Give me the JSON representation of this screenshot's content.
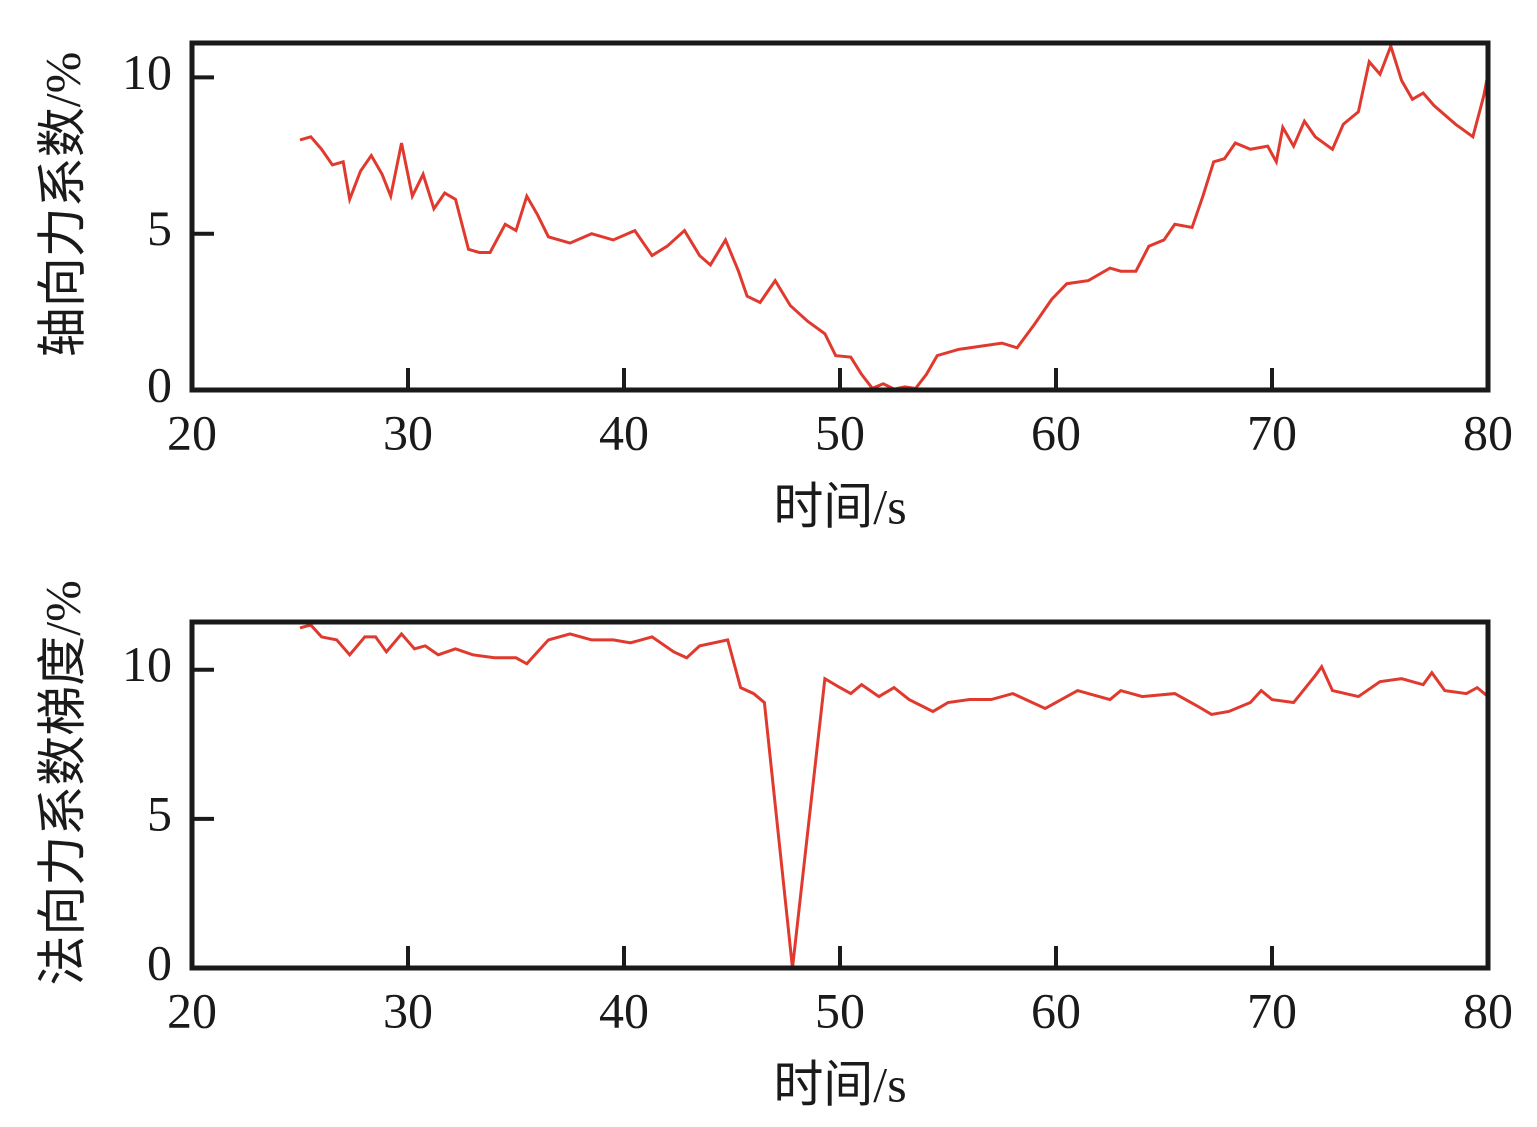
{
  "chart_data": [
    {
      "type": "line",
      "xlabel": "时间/s",
      "ylabel": "轴向力系数/%",
      "xlim": [
        20,
        80
      ],
      "xticks": [
        20,
        30,
        40,
        50,
        60,
        70,
        80
      ],
      "ylim": [
        0,
        11.1
      ],
      "yticks": [
        0,
        5,
        10
      ],
      "series": [
        {
          "color": "#e03a2f",
          "x": [
            25,
            25.5,
            26,
            26.5,
            27,
            27.3,
            27.8,
            28.3,
            28.8,
            29.2,
            29.7,
            30.2,
            30.7,
            31.2,
            31.7,
            32.2,
            32.8,
            33.3,
            33.8,
            34.5,
            35,
            35.5,
            36,
            36.5,
            37.5,
            38.5,
            39.5,
            40.5,
            41.3,
            42,
            42.8,
            43.5,
            44,
            44.7,
            45.3,
            45.7,
            46.3,
            47,
            47.7,
            48.5,
            49.3,
            49.8,
            50.5,
            51,
            51.5,
            52,
            52.5,
            53,
            53.5,
            54,
            54.5,
            55.5,
            56.5,
            57.5,
            58.2,
            59,
            59.8,
            60.5,
            61.5,
            62.5,
            63,
            63.7,
            64.3,
            65,
            65.5,
            66.3,
            66.8,
            67.3,
            67.8,
            68.3,
            69,
            69.8,
            70.2,
            70.5,
            71,
            71.5,
            72,
            72.8,
            73.3,
            74,
            74.5,
            75,
            75.5,
            76,
            76.5,
            77,
            77.5,
            78.5,
            79.3,
            79.8,
            80
          ],
          "values": [
            8.0,
            8.1,
            7.7,
            7.2,
            7.3,
            6.1,
            7.0,
            7.5,
            6.9,
            6.2,
            7.9,
            6.2,
            6.9,
            5.8,
            6.3,
            6.1,
            4.5,
            4.4,
            4.4,
            5.3,
            5.1,
            6.2,
            5.6,
            4.9,
            4.7,
            5.0,
            4.8,
            5.1,
            4.3,
            4.6,
            5.1,
            4.3,
            4.0,
            4.8,
            3.8,
            3.0,
            2.8,
            3.5,
            2.7,
            2.2,
            1.8,
            1.1,
            1.05,
            0.5,
            0.05,
            0.2,
            0.03,
            0.1,
            0.05,
            0.5,
            1.1,
            1.3,
            1.4,
            1.5,
            1.35,
            2.1,
            2.9,
            3.4,
            3.5,
            3.9,
            3.8,
            3.8,
            4.6,
            4.8,
            5.3,
            5.2,
            6.2,
            7.3,
            7.4,
            7.9,
            7.7,
            7.8,
            7.3,
            8.4,
            7.8,
            8.6,
            8.1,
            7.7,
            8.5,
            8.9,
            10.5,
            10.1,
            11.0,
            9.9,
            9.3,
            9.5,
            9.1,
            8.5,
            8.1,
            9.4,
            10.1
          ]
        }
      ]
    },
    {
      "type": "line",
      "xlabel": "时间/s",
      "ylabel": "法向力系数梯度/%",
      "xlim": [
        20,
        80
      ],
      "xticks": [
        20,
        30,
        40,
        50,
        60,
        70,
        80
      ],
      "ylim": [
        0,
        11.6
      ],
      "yticks": [
        0,
        5,
        10
      ],
      "series": [
        {
          "color": "#e03a2f",
          "x": [
            25,
            25.5,
            26,
            26.7,
            27.3,
            28,
            28.5,
            29,
            29.7,
            30.3,
            30.8,
            31.4,
            32.2,
            33,
            34,
            35,
            35.5,
            36.5,
            37.5,
            38.5,
            39.5,
            40.3,
            41.3,
            42.3,
            42.9,
            43.5,
            44.8,
            45.4,
            46,
            46.5,
            47.8,
            49.3,
            50,
            50.5,
            51,
            51.8,
            52.5,
            53.2,
            54.3,
            55,
            56,
            57,
            58,
            59.5,
            61,
            62.5,
            63,
            64,
            65.5,
            66.5,
            67.2,
            68,
            69,
            69.5,
            70,
            71,
            72,
            72.3,
            72.8,
            74,
            75,
            76,
            77,
            77.4,
            78,
            79,
            79.5,
            80
          ],
          "values": [
            11.4,
            11.5,
            11.1,
            11.0,
            10.5,
            11.1,
            11.1,
            10.6,
            11.2,
            10.7,
            10.8,
            10.5,
            10.7,
            10.5,
            10.4,
            10.4,
            10.2,
            11.0,
            11.2,
            11.0,
            11.0,
            10.9,
            11.1,
            10.6,
            10.4,
            10.8,
            11.0,
            9.4,
            9.2,
            8.9,
            0,
            9.7,
            9.4,
            9.2,
            9.5,
            9.1,
            9.4,
            9.0,
            8.6,
            8.9,
            9.0,
            9.0,
            9.2,
            8.7,
            9.3,
            9.0,
            9.3,
            9.1,
            9.2,
            8.8,
            8.5,
            8.6,
            8.9,
            9.3,
            9.0,
            8.9,
            9.8,
            10.1,
            9.3,
            9.1,
            9.6,
            9.7,
            9.5,
            9.9,
            9.3,
            9.2,
            9.4,
            9.1
          ]
        }
      ]
    }
  ]
}
